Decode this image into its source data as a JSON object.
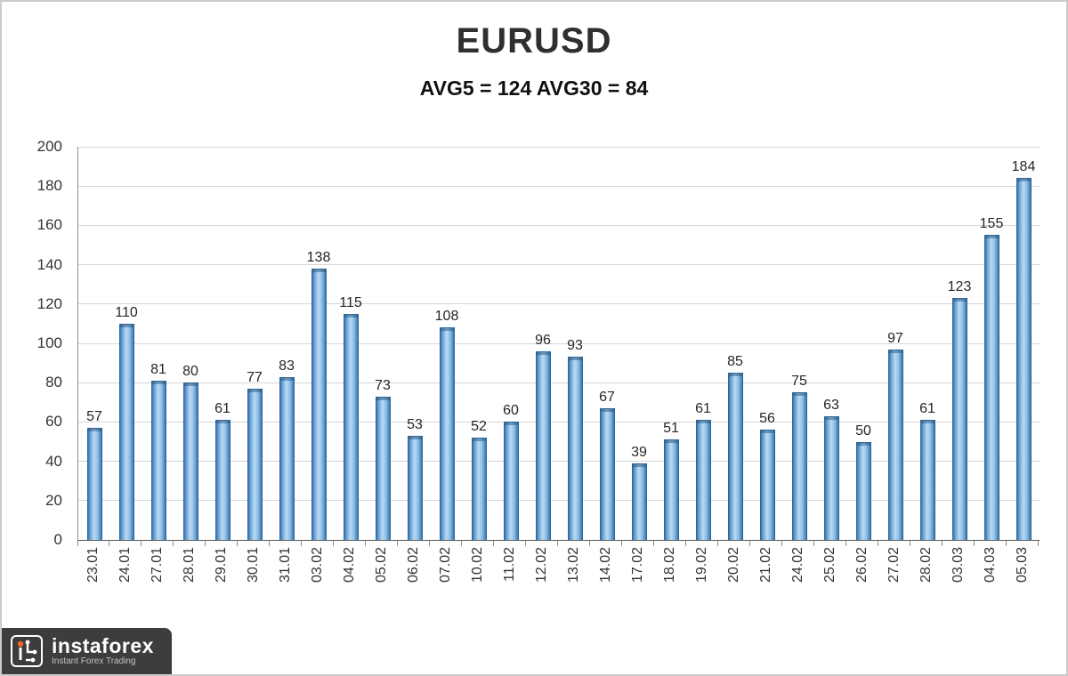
{
  "chart_data": {
    "type": "bar",
    "title": "EURUSD",
    "subtitle": "AVG5 = 124 AVG30 = 84",
    "categories": [
      "23.01",
      "24.01",
      "27.01",
      "28.01",
      "29.01",
      "30.01",
      "31.01",
      "03.02",
      "04.02",
      "05.02",
      "06.02",
      "07.02",
      "10.02",
      "11.02",
      "12.02",
      "13.02",
      "14.02",
      "17.02",
      "18.02",
      "19.02",
      "20.02",
      "21.02",
      "24.02",
      "25.02",
      "26.02",
      "27.02",
      "28.02",
      "03.03",
      "04.03",
      "05.03"
    ],
    "values": [
      57,
      110,
      81,
      80,
      61,
      77,
      83,
      138,
      115,
      73,
      53,
      108,
      52,
      60,
      96,
      93,
      67,
      39,
      51,
      61,
      85,
      56,
      75,
      63,
      50,
      97,
      61,
      123,
      155,
      184
    ],
    "xlabel": "",
    "ylabel": "",
    "ylim": [
      0,
      200
    ],
    "yticks": [
      0,
      20,
      40,
      60,
      80,
      100,
      120,
      140,
      160,
      180,
      200
    ],
    "grid": true,
    "value_labels": true,
    "legend": "none",
    "bar_color": "#7EB2DE",
    "bar_edge_color": "#2E6596"
  },
  "watermark": {
    "brand": "instaforex",
    "tagline": "Instant Forex Trading",
    "accent_color": "#F26522"
  }
}
